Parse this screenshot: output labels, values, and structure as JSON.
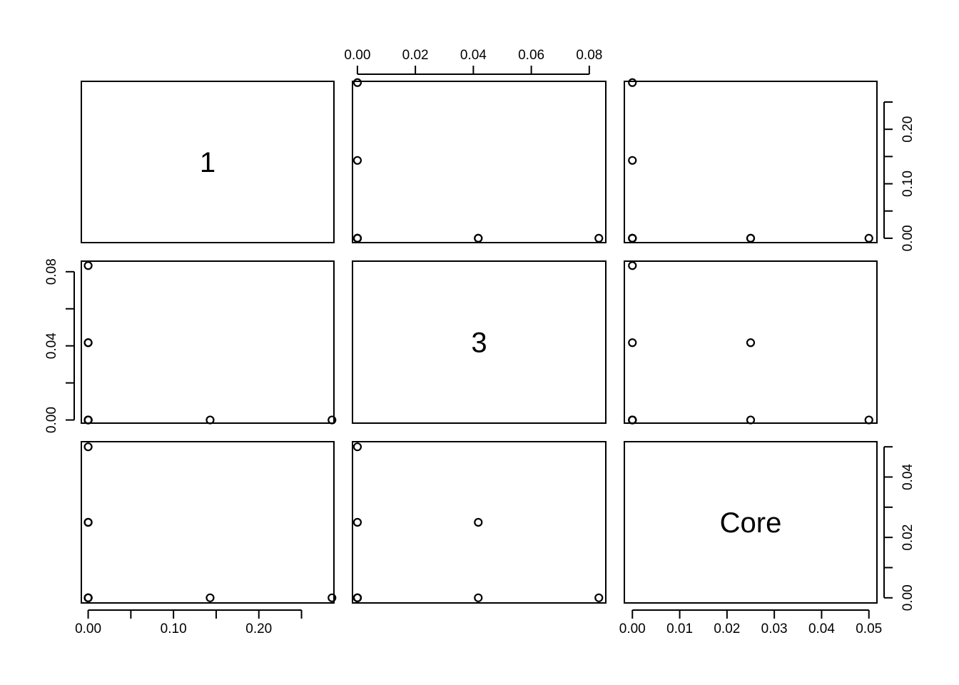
{
  "chart_data": {
    "type": "scatter",
    "kind": "pairs-matrix",
    "variables": [
      "1",
      "3",
      "Core"
    ],
    "ranges": {
      "1": [
        -0.008,
        0.288
      ],
      "3": [
        -0.0017,
        0.0857
      ],
      "Core": [
        -0.0017,
        0.0517
      ]
    },
    "ticks": {
      "1": {
        "major": [
          0,
          0.05,
          0.1,
          0.15,
          0.2,
          0.25
        ],
        "labels": {
          "0": "0.00",
          "0.1": "0.10",
          "0.2": "0.20"
        }
      },
      "3": {
        "major": [
          0,
          0.02,
          0.04,
          0.06,
          0.08
        ],
        "labels": {
          "0": "0.00",
          "0.02": "0.02",
          "0.04": "0.04",
          "0.06": "0.06",
          "0.08": "0.08"
        }
      },
      "Core": {
        "major": [
          0,
          0.01,
          0.02,
          0.03,
          0.04,
          0.05
        ],
        "labels": {
          "0": "0.00",
          "0.01": "0.01",
          "0.02": "0.02",
          "0.03": "0.03",
          "0.04": "0.04",
          "0.05": "0.05"
        }
      }
    },
    "tick_labels_left": {
      "3": {
        "0": "0.00",
        "0.04": "0.04",
        "0.08": "0.08"
      }
    },
    "tick_labels_right": {
      "1": {
        "0": "0.00",
        "0.1": "0.10",
        "0.2": "0.20"
      },
      "Core": {
        "0": "0.00",
        "0.02": "0.02",
        "0.04": "0.04"
      }
    },
    "observations": [
      {
        "1": 0.2857,
        "3": 0.0,
        "Core": 0.0
      },
      {
        "1": 0.1429,
        "3": 0.0,
        "Core": 0.0
      },
      {
        "1": 0.0,
        "3": 0.0,
        "Core": 0.0
      },
      {
        "1": 0.0,
        "3": 0.0,
        "Core": 0.0
      },
      {
        "1": 0.0,
        "3": 0.0833,
        "Core": 0.0
      },
      {
        "1": 0.0,
        "3": 0.0417,
        "Core": 0.025
      },
      {
        "1": 0.0,
        "3": 0.0,
        "Core": 0.025
      },
      {
        "1": 0.0,
        "3": 0.0,
        "Core": 0.05
      },
      {
        "1": 0.0,
        "3": 0.0417,
        "Core": 0.0
      },
      {
        "1": 0.0,
        "3": 0.0,
        "Core": 0.0
      }
    ],
    "axes": {
      "top": [
        {
          "column": "3"
        }
      ],
      "bottom": [
        {
          "column": "1"
        },
        {
          "column": "Core"
        }
      ],
      "left": [
        {
          "row": "3"
        }
      ],
      "right": [
        {
          "row": "1"
        },
        {
          "row": "Core"
        }
      ]
    },
    "grid": false,
    "legend": "none",
    "point_style": "open-circle",
    "color": "#000000"
  }
}
